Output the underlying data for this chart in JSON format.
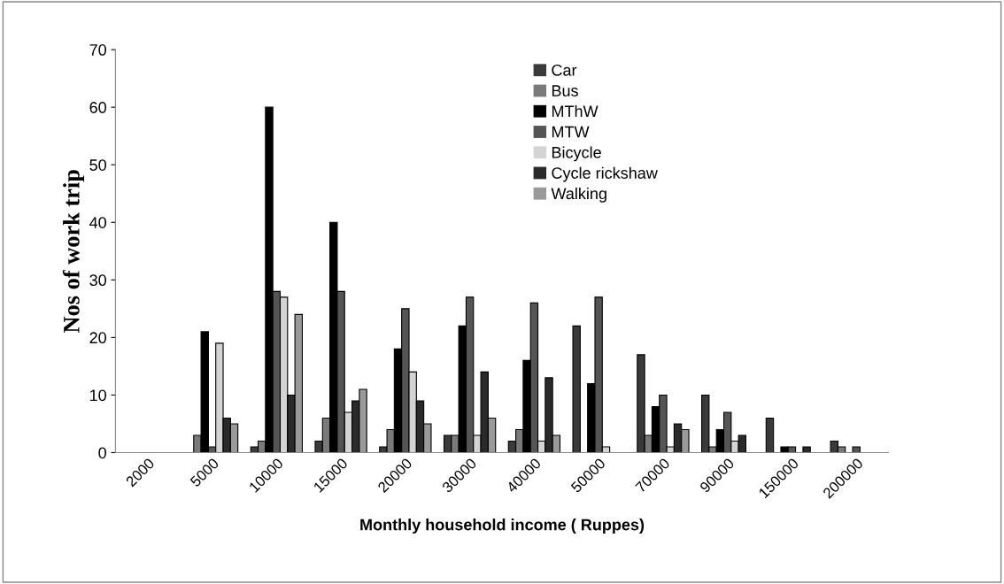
{
  "chart_data": {
    "type": "bar",
    "xlabel": "Monthly household income ( Ruppes)",
    "ylabel": "Nos of work trip",
    "categories": [
      "2000",
      "5000",
      "10000",
      "15000",
      "20000",
      "30000",
      "40000",
      "50000",
      "70000",
      "90000",
      "150000",
      "200000"
    ],
    "series": [
      {
        "name": "Car",
        "color": "#3a3a3a",
        "values": [
          0,
          0,
          1,
          2,
          1,
          3,
          2,
          22,
          17,
          10,
          6,
          2
        ]
      },
      {
        "name": "Bus",
        "color": "#7a7a7a",
        "values": [
          0,
          3,
          2,
          6,
          4,
          3,
          4,
          0,
          3,
          1,
          0,
          1
        ]
      },
      {
        "name": "MThW",
        "color": "#000000",
        "values": [
          0,
          21,
          60,
          40,
          18,
          22,
          16,
          12,
          8,
          4,
          1,
          0
        ]
      },
      {
        "name": "MTW",
        "color": "#555555",
        "values": [
          0,
          1,
          28,
          28,
          25,
          27,
          26,
          27,
          10,
          7,
          1,
          1
        ]
      },
      {
        "name": "Bicycle",
        "color": "#d4d4d4",
        "values": [
          0,
          19,
          27,
          7,
          14,
          3,
          2,
          1,
          1,
          2,
          0,
          0
        ]
      },
      {
        "name": "Cycle rickshaw",
        "color": "#2a2a2a",
        "values": [
          0,
          6,
          10,
          9,
          9,
          14,
          13,
          0,
          5,
          3,
          1,
          0
        ]
      },
      {
        "name": "Walking",
        "color": "#9a9a9a",
        "values": [
          0,
          5,
          24,
          11,
          5,
          6,
          3,
          0,
          4,
          0,
          0,
          0
        ]
      }
    ],
    "ylim": [
      0,
      70
    ],
    "yticks": [
      0,
      10,
      20,
      30,
      40,
      50,
      60,
      70
    ],
    "grid": false,
    "legend": "top right"
  }
}
